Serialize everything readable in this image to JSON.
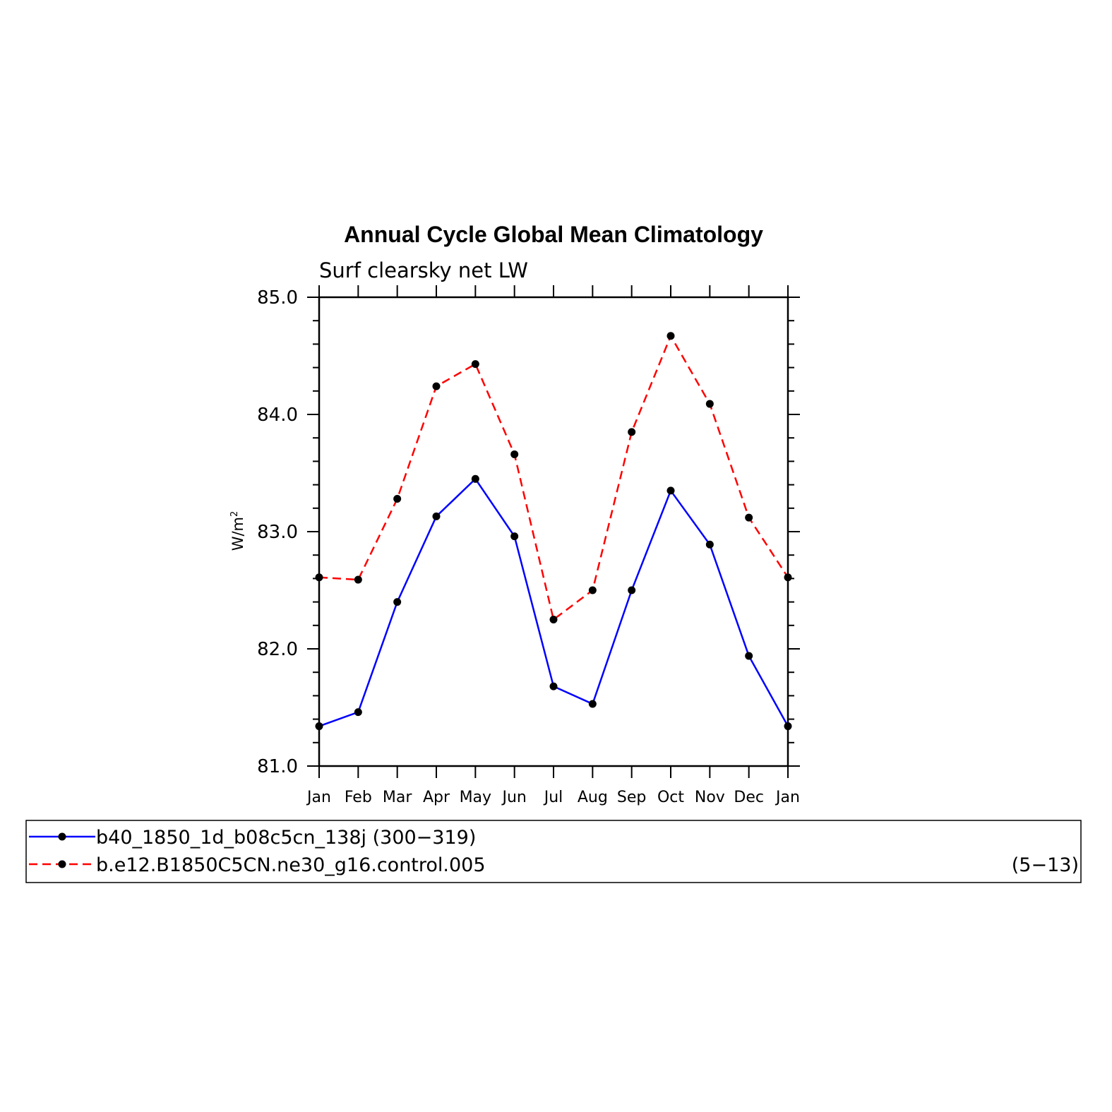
{
  "chart_data": {
    "type": "line",
    "title": "Annual Cycle Global Mean Climatology",
    "subtitle": "Surf clearsky net LW",
    "ylabel": "W/m",
    "ylabel_superscript": "2",
    "xlabel": "",
    "categories": [
      "Jan",
      "Feb",
      "Mar",
      "Apr",
      "May",
      "Jun",
      "Jul",
      "Aug",
      "Sep",
      "Oct",
      "Nov",
      "Dec",
      "Jan"
    ],
    "ylim": [
      81.0,
      85.0
    ],
    "yticks": [
      "81.0",
      "82.0",
      "83.0",
      "84.0",
      "85.0"
    ],
    "grid": false,
    "legend_position": "bottom",
    "series": [
      {
        "name": "b40_1850_1d_b08c5cn_138j (300−319)",
        "color": "#0000ff",
        "dash": "solid",
        "marker": "filled-circle",
        "values": [
          81.34,
          81.46,
          82.4,
          83.13,
          83.45,
          82.96,
          81.68,
          81.53,
          82.5,
          83.35,
          82.89,
          81.94,
          81.34
        ]
      },
      {
        "name": "b.e12.B1850C5CN.ne30_g16.control.005",
        "color": "#ff0000",
        "dash": "dashed",
        "marker": "filled-circle",
        "values": [
          82.61,
          82.59,
          83.28,
          84.24,
          84.43,
          83.66,
          82.25,
          82.5,
          83.85,
          84.67,
          84.09,
          83.12,
          82.61
        ]
      }
    ],
    "legend_extra": [
      "",
      "(5−13)"
    ]
  }
}
